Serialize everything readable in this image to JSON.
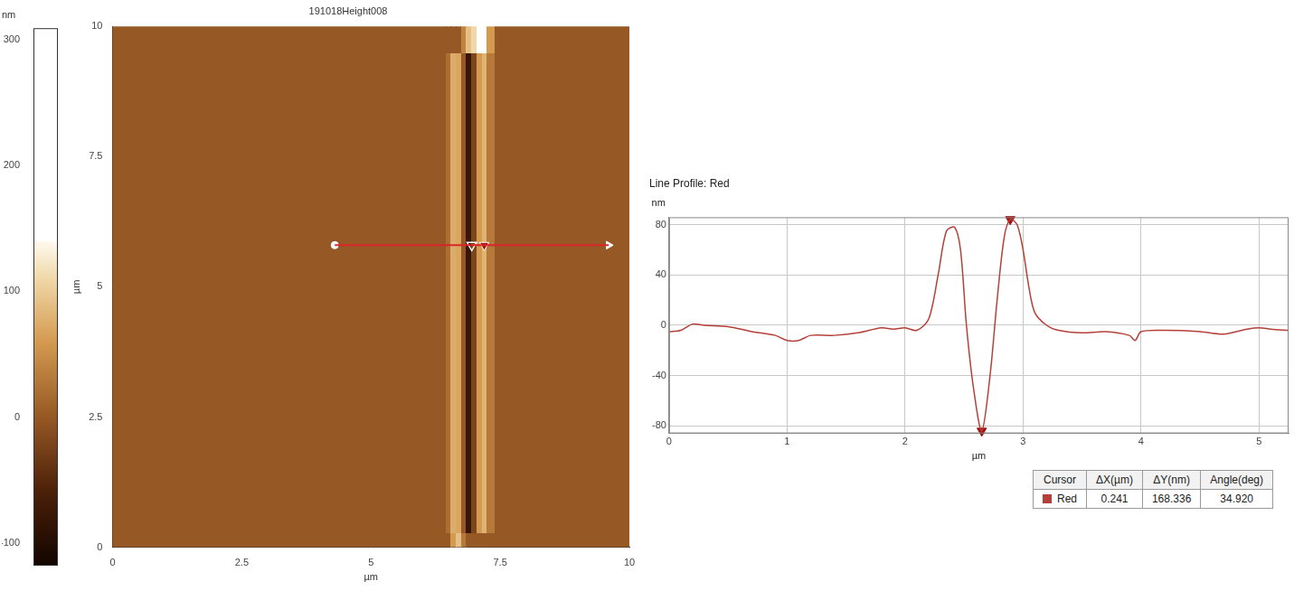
{
  "chart_data": [
    {
      "type": "heatmap",
      "title": "191018Height008",
      "x_label": "µm",
      "y_label": "µm",
      "xlim": [
        0,
        10
      ],
      "ylim": [
        0,
        10
      ],
      "xticks": [
        0,
        2.5,
        5,
        7.5,
        10
      ],
      "yticks": [
        0,
        2.5,
        5,
        7.5,
        10
      ],
      "x_edges": [
        0,
        6.45,
        6.55,
        6.65,
        6.75,
        6.85,
        6.95,
        7.05,
        7.15,
        7.25,
        7.4,
        10
      ],
      "y_edges": [
        0,
        0.3,
        9.5,
        10
      ],
      "cells": [
        [
          0,
          0,
          60,
          90,
          30,
          0,
          0,
          0,
          0,
          0,
          0
        ],
        [
          0,
          20,
          75,
          70,
          0,
          -80,
          -20,
          60,
          80,
          30,
          0
        ],
        [
          0,
          0,
          0,
          0,
          40,
          90,
          110,
          180,
          220,
          60,
          0
        ]
      ],
      "colorbar": {
        "label": "nm",
        "range": [
          -118,
          309
        ],
        "ticks": [
          -100,
          0,
          100,
          200,
          300
        ]
      },
      "profile_line": {
        "name": "Red",
        "color": "#d8262b",
        "start": [
          4.3,
          5.8
        ],
        "end": [
          9.6,
          5.8
        ]
      }
    },
    {
      "type": "line",
      "title": "Line Profile: Red",
      "x_label": "µm",
      "y_label": "nm",
      "x": [
        0,
        0.1,
        0.2,
        0.3,
        0.5,
        0.7,
        0.9,
        1.0,
        1.1,
        1.2,
        1.4,
        1.6,
        1.8,
        1.9,
        2.0,
        2.1,
        2.2,
        2.28,
        2.35,
        2.42,
        2.47,
        2.52,
        2.58,
        2.65,
        2.72,
        2.78,
        2.84,
        2.891,
        2.95,
        3.0,
        3.05,
        3.1,
        3.2,
        3.3,
        3.5,
        3.7,
        3.9,
        3.95,
        4.0,
        4.2,
        4.5,
        4.7,
        4.9,
        5.0,
        5.1,
        5.25
      ],
      "values": [
        -5,
        -4,
        1,
        0,
        -1,
        -5,
        -8,
        -12,
        -12,
        -8,
        -8,
        -6,
        -2,
        -3,
        -2,
        -4,
        5,
        40,
        75,
        78,
        60,
        0,
        -50,
        -84,
        -40,
        20,
        70,
        84.336,
        80,
        60,
        30,
        10,
        0,
        -4,
        -6,
        -5,
        -8,
        -12,
        -5,
        -4,
        -5,
        -7,
        -3,
        -2,
        -3,
        -4
      ],
      "color": "#b5403a",
      "xlim": [
        0,
        5.25
      ],
      "ylim": [
        -86,
        86
      ],
      "xticks": [
        0,
        1,
        2,
        3,
        4,
        5
      ],
      "yticks": [
        -80,
        -40,
        0,
        40,
        80
      ],
      "grid": true,
      "cursors": {
        "x": [
          2.65,
          2.891
        ],
        "y": [
          -84,
          84.336
        ]
      }
    }
  ],
  "cursor_table": {
    "header": [
      "Cursor",
      "ΔX(µm)",
      "ΔY(nm)",
      "Angle(deg)"
    ],
    "rows": [
      [
        "Red",
        "0.241",
        "168.336",
        "34.920"
      ]
    ]
  }
}
